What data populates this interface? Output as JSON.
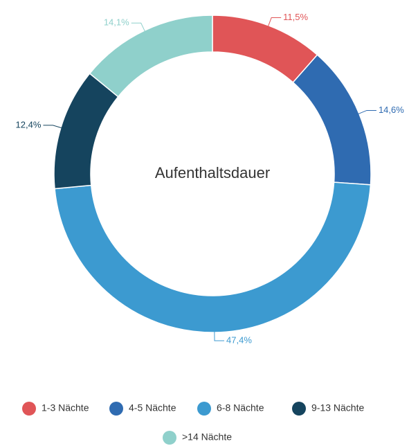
{
  "chart_data": {
    "type": "pie",
    "title": "Aufenthaltsdauer",
    "categories": [
      "1-3 Nächte",
      "4-5 Nächte",
      "6-8 Nächte",
      "9-13 Nächte",
      ">14 Nächte"
    ],
    "values": [
      11.5,
      14.6,
      47.4,
      12.4,
      14.1
    ],
    "value_labels": [
      "11,5%",
      "14,6%",
      "47,4%",
      "12,4%",
      "14,1%"
    ],
    "colors": [
      "#e05557",
      "#2f6bb1",
      "#3c9ad0",
      "#15445e",
      "#8fd0cb"
    ]
  }
}
